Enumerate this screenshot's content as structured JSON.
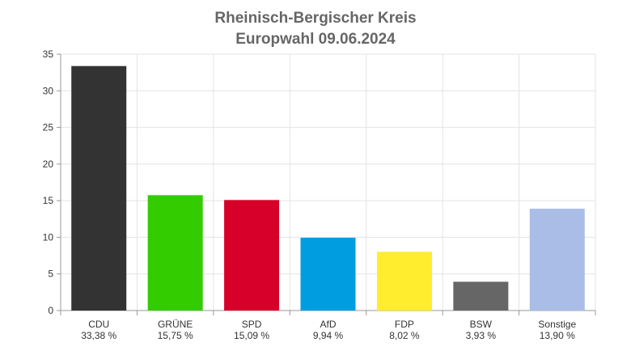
{
  "chart_data": {
    "type": "bar",
    "title": "Rheinisch-Bergischer Kreis",
    "subtitle": "Europwahl 09.06.2024",
    "categories": [
      "CDU",
      "GRÜNE",
      "SPD",
      "AfD",
      "FDP",
      "BSW",
      "Sonstige"
    ],
    "values": [
      33.38,
      15.75,
      15.09,
      9.94,
      8.02,
      3.93,
      13.9
    ],
    "value_labels": [
      "33,38 %",
      "15,75 %",
      "15,09 %",
      "9,94 %",
      "8,02 %",
      "3,93 %",
      "13,90 %"
    ],
    "colors": [
      "#333333",
      "#33cc00",
      "#d6002a",
      "#009ee0",
      "#ffed2e",
      "#666666",
      "#aabde6"
    ],
    "ylim": [
      0,
      35
    ],
    "yticks": [
      0,
      5,
      10,
      15,
      20,
      25,
      30,
      35
    ],
    "grid": true,
    "legend": "none"
  }
}
